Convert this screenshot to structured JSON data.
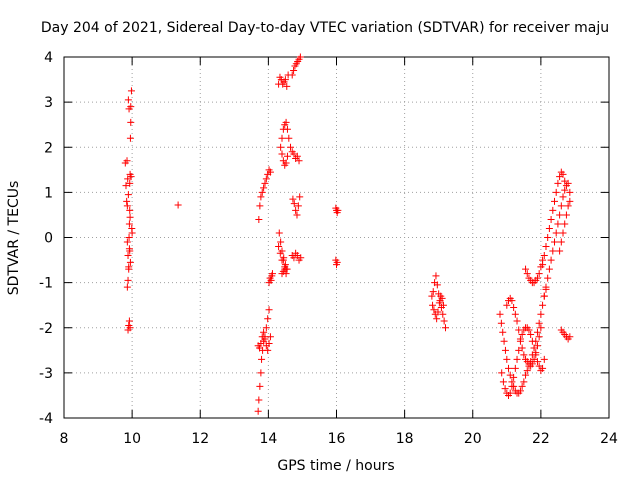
{
  "chart_data": {
    "type": "scatter",
    "title": "Day 204 of 2021, Sidereal Day-to-day VTEC variation (SDTVAR) for receiver maju",
    "xlabel": "GPS time / hours",
    "ylabel": "SDTVAR / TECUs",
    "xlim": [
      8,
      24
    ],
    "ylim": [
      -4,
      4
    ],
    "xticks": [
      8,
      10,
      12,
      14,
      16,
      18,
      20,
      22,
      24
    ],
    "yticks": [
      -4,
      -3,
      -2,
      -1,
      0,
      1,
      2,
      3,
      4
    ],
    "xtick_labels": [
      "8",
      "10",
      "12",
      "14",
      "16",
      "18",
      "20",
      "22",
      "24"
    ],
    "ytick_labels": [
      "-4",
      "-3",
      "-2",
      "-1",
      "0",
      "1",
      "2",
      "3",
      "4"
    ],
    "grid": true,
    "marker": "+",
    "color": "#ff0000",
    "series": [
      {
        "name": "SDTVAR",
        "x": [
          9.8,
          9.82,
          9.84,
          9.86,
          9.88,
          9.9,
          9.92,
          9.93,
          9.94,
          9.95,
          9.96,
          9.98,
          10.0,
          9.85,
          9.87,
          9.89,
          9.91,
          9.93,
          9.95,
          9.97,
          9.99,
          9.86,
          9.88,
          9.9,
          9.92,
          9.94,
          9.88,
          9.9,
          9.92,
          9.94,
          9.96,
          9.86,
          9.89,
          9.91,
          9.93,
          11.35,
          13.7,
          13.72,
          13.75,
          13.78,
          13.8,
          13.83,
          13.86,
          13.9,
          13.94,
          13.98,
          14.02,
          13.72,
          13.75,
          13.78,
          13.82,
          13.86,
          13.9,
          13.94,
          13.98,
          14.02,
          14.06,
          13.7,
          13.74,
          13.78,
          13.82,
          13.86,
          13.9,
          13.94,
          13.98,
          14.02,
          14.06,
          14.02,
          14.05,
          14.08,
          14.1,
          14.12,
          14.3,
          14.34,
          14.38,
          14.42,
          14.46,
          14.5,
          14.54,
          14.58,
          14.32,
          14.36,
          14.4,
          14.44,
          14.48,
          14.52,
          14.4,
          14.44,
          14.48,
          14.52,
          14.56,
          14.6,
          14.65,
          14.7,
          14.75,
          14.8,
          14.85,
          14.9,
          14.36,
          14.4,
          14.44,
          14.48,
          14.52,
          14.56,
          14.4,
          14.44,
          14.48,
          14.52,
          14.3,
          14.35,
          14.4,
          14.45,
          14.5,
          14.55,
          14.7,
          14.74,
          14.78,
          14.82,
          14.86,
          14.9,
          14.94,
          14.72,
          14.76,
          14.8,
          14.84,
          14.88,
          14.92,
          14.7,
          14.75,
          14.8,
          14.85,
          14.9,
          14.95,
          15.98,
          16.0,
          16.02,
          16.04,
          15.98,
          16.0,
          16.02,
          18.8,
          18.84,
          18.88,
          18.92,
          18.96,
          19.0,
          19.04,
          19.08,
          19.12,
          19.16,
          19.2,
          18.82,
          18.86,
          18.9,
          18.94,
          18.98,
          19.02,
          19.06,
          19.1,
          19.14,
          20.8,
          20.84,
          20.88,
          20.92,
          20.96,
          21.0,
          21.05,
          21.1,
          21.15,
          21.2,
          21.25,
          21.3,
          21.35,
          21.4,
          21.45,
          21.5,
          21.55,
          21.6,
          21.65,
          21.7,
          21.75,
          21.8,
          21.85,
          21.9,
          21.95,
          22.0,
          22.05,
          22.1,
          22.15,
          20.85,
          20.9,
          20.95,
          21.0,
          21.05,
          21.1,
          21.15,
          21.2,
          21.25,
          21.3,
          21.35,
          21.4,
          21.45,
          21.5,
          21.55,
          21.6,
          21.65,
          21.7,
          21.75,
          21.8,
          21.85,
          21.9,
          21.95,
          22.0,
          22.05,
          22.1,
          21.0,
          21.05,
          21.1,
          21.15,
          21.2,
          21.25,
          21.3,
          21.35,
          21.4,
          21.45,
          21.5,
          21.55,
          21.6,
          21.65,
          21.7,
          21.75,
          21.8,
          21.85,
          21.9,
          21.95,
          22.0,
          21.55,
          21.6,
          21.65,
          21.7,
          21.75,
          21.8,
          21.85,
          21.9,
          21.95,
          22.0,
          22.05,
          22.05,
          22.1,
          22.15,
          22.2,
          22.25,
          22.3,
          22.35,
          22.4,
          22.45,
          22.5,
          22.55,
          22.6,
          22.65,
          22.7,
          22.1,
          22.15,
          22.2,
          22.25,
          22.3,
          22.35,
          22.4,
          22.45,
          22.5,
          22.55,
          22.6,
          22.65,
          22.7,
          22.75,
          22.8,
          22.85,
          22.55,
          22.6,
          22.65,
          22.7,
          22.75,
          22.8,
          22.85,
          22.6,
          22.65,
          22.7,
          22.75,
          22.8,
          22.85
        ],
        "y": [
          1.65,
          1.15,
          0.8,
          -0.1,
          -0.4,
          -0.7,
          0.3,
          0.6,
          1.4,
          2.2,
          2.9,
          3.25,
          0.1,
          1.7,
          1.3,
          0.95,
          0.0,
          -0.3,
          -0.55,
          1.35,
          0.2,
          -1.1,
          -0.95,
          -0.65,
          -0.25,
          0.45,
          -2.05,
          -1.95,
          -1.85,
          -2.0,
          2.55,
          0.7,
          3.05,
          2.85,
          1.2,
          0.72,
          -3.85,
          -3.6,
          -3.3,
          -3.0,
          -2.7,
          -2.5,
          -2.3,
          -2.2,
          -2.0,
          -1.8,
          -1.6,
          0.4,
          0.7,
          0.9,
          1.0,
          1.1,
          1.2,
          1.3,
          1.4,
          1.5,
          1.45,
          -2.4,
          -2.45,
          -2.35,
          -2.2,
          -2.1,
          -2.25,
          -2.4,
          -2.5,
          -2.35,
          -2.2,
          -1.0,
          -0.9,
          -0.95,
          -0.85,
          -0.8,
          3.4,
          3.55,
          3.5,
          3.4,
          3.45,
          3.5,
          3.35,
          3.6,
          0.1,
          -0.1,
          -0.3,
          -0.5,
          -0.7,
          -0.8,
          2.2,
          2.4,
          2.5,
          2.55,
          2.4,
          2.2,
          2.0,
          1.9,
          1.85,
          1.75,
          1.8,
          1.7,
          2.0,
          1.85,
          1.7,
          1.6,
          1.65,
          1.8,
          -0.8,
          -0.75,
          -0.65,
          -0.7,
          -0.2,
          -0.35,
          -0.5,
          -0.45,
          -0.6,
          -0.7,
          3.6,
          3.7,
          3.8,
          3.85,
          3.9,
          3.95,
          4.0,
          0.85,
          0.75,
          0.6,
          0.5,
          0.7,
          0.9,
          -0.4,
          -0.45,
          -0.35,
          -0.4,
          -0.5,
          -0.45,
          0.65,
          0.6,
          0.55,
          0.6,
          -0.5,
          -0.6,
          -0.55,
          -1.3,
          -1.2,
          -1.0,
          -0.85,
          -1.05,
          -1.25,
          -1.4,
          -1.55,
          -1.7,
          -1.85,
          -2.0,
          -1.5,
          -1.6,
          -1.7,
          -1.8,
          -1.65,
          -1.45,
          -1.3,
          -1.35,
          -1.5,
          -1.7,
          -1.9,
          -2.1,
          -2.3,
          -2.5,
          -2.7,
          -2.9,
          -3.05,
          -3.2,
          -3.3,
          -3.4,
          -3.45,
          -3.45,
          -3.4,
          -3.3,
          -3.2,
          -3.05,
          -2.95,
          -2.85,
          -2.75,
          -2.6,
          -2.45,
          -2.3,
          -2.1,
          -1.9,
          -1.7,
          -1.5,
          -1.3,
          -1.15,
          -3.0,
          -3.2,
          -3.35,
          -3.45,
          -3.5,
          -3.45,
          -3.3,
          -3.1,
          -2.9,
          -2.7,
          -2.5,
          -2.3,
          -2.15,
          -2.05,
          -2.0,
          -2.0,
          -2.05,
          -2.15,
          -2.3,
          -2.45,
          -2.6,
          -2.75,
          -2.85,
          -2.95,
          -2.9,
          -2.7,
          -1.5,
          -1.4,
          -1.35,
          -1.4,
          -1.55,
          -1.7,
          -1.85,
          -2.05,
          -2.25,
          -2.45,
          -2.6,
          -2.7,
          -2.75,
          -2.8,
          -2.85,
          -2.8,
          -2.7,
          -2.55,
          -2.4,
          -2.2,
          -2.0,
          -0.7,
          -0.8,
          -0.9,
          -0.95,
          -1.0,
          -1.0,
          -0.95,
          -0.9,
          -0.8,
          -0.65,
          -0.5,
          -0.6,
          -0.4,
          -0.2,
          0.0,
          0.2,
          0.4,
          0.6,
          0.8,
          1.0,
          1.2,
          1.35,
          1.45,
          1.4,
          1.25,
          -1.3,
          -1.1,
          -0.9,
          -0.7,
          -0.5,
          -0.3,
          -0.1,
          0.1,
          0.3,
          0.5,
          0.7,
          0.9,
          1.05,
          1.15,
          1.2,
          1.0,
          -0.3,
          -0.1,
          0.1,
          0.3,
          0.5,
          0.7,
          0.8,
          -2.05,
          -2.1,
          -2.15,
          -2.2,
          -2.25,
          -2.2
        ]
      }
    ]
  }
}
